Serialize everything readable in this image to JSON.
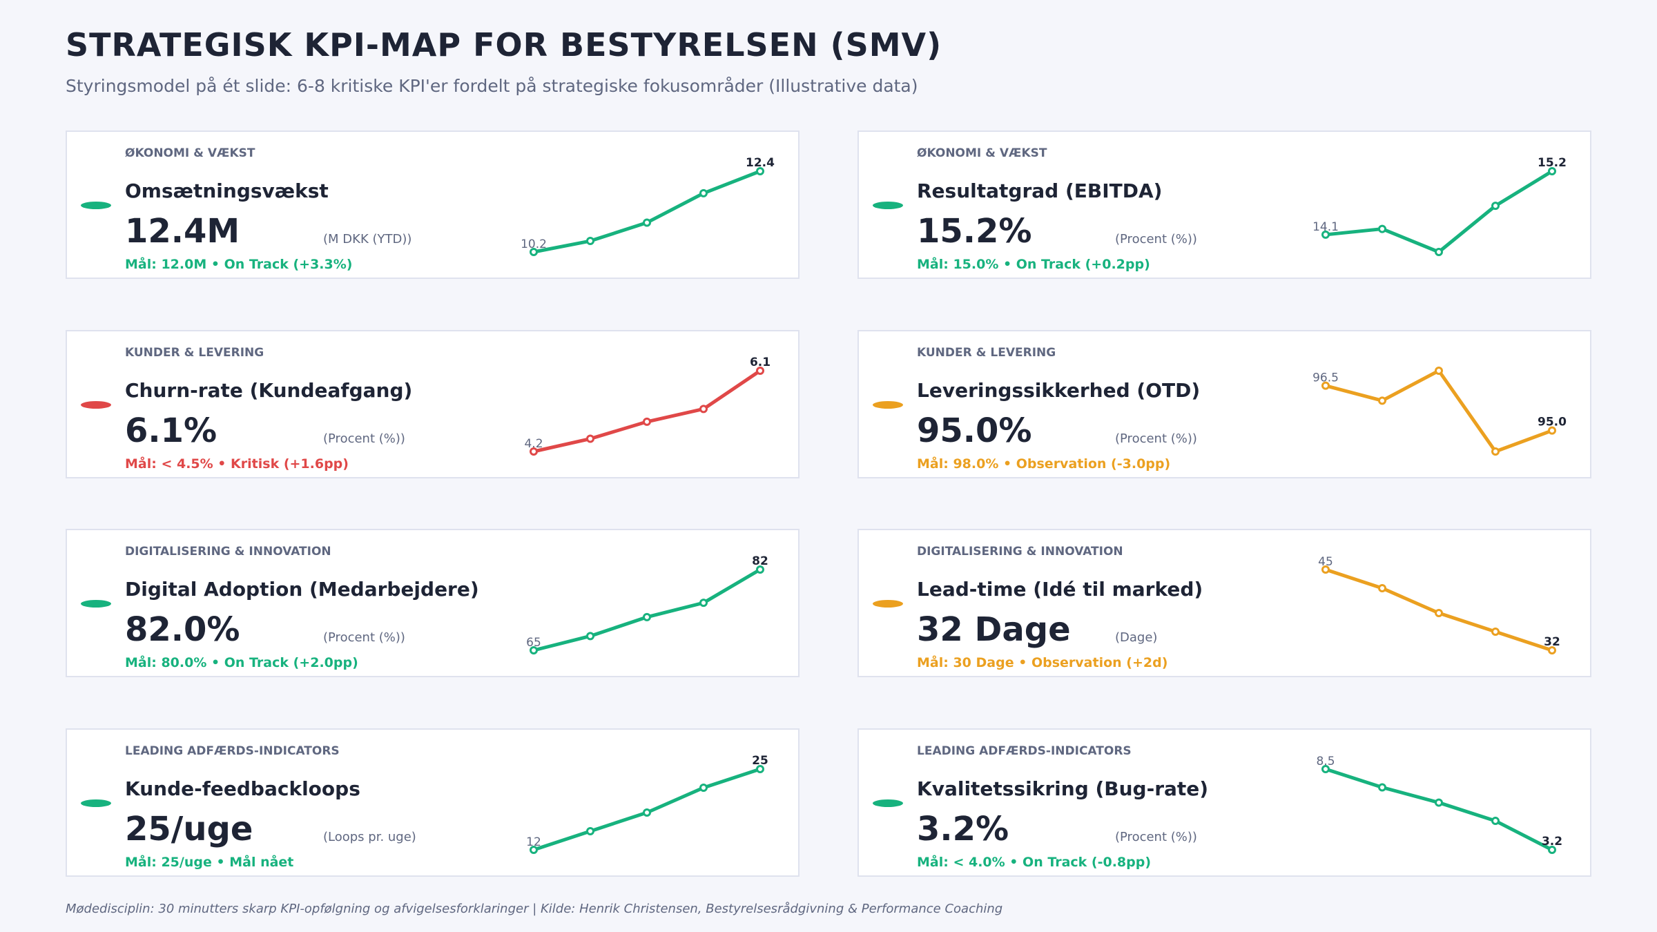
{
  "title": "STRATEGISK KPI-MAP FOR BESTYRELSEN (SMV)",
  "subtitle": "Styringsmodel på ét slide: 6-8 kritiske KPI'er fordelt på strategiske fokusområder (Illustrative data)",
  "footer": "Mødedisciplin: 30 minutters skarp KPI-opfølgning og afvigelsesforklaringer  |  Kilde: Henrik Christensen, Bestyrelsesrådgivning & Performance Coaching",
  "colors": {
    "green": "#17b27e",
    "red": "#e04848",
    "orange": "#eba020"
  },
  "chart_data": [
    {
      "type": "line",
      "category": "ØKONOMI & VÆKST",
      "name": "Omsætningsvækst",
      "value_text": "12.4M",
      "unit": "(M DKK (YTD))",
      "status": "Mål: 12.0M  •  On Track (+3.3%)",
      "color": "#17b27e",
      "values": [
        10.2,
        10.5,
        11.0,
        11.8,
        12.4
      ],
      "start_label": "10.2",
      "end_label": "12.4"
    },
    {
      "type": "line",
      "category": "ØKONOMI & VÆKST",
      "name": "Resultatgrad (EBITDA)",
      "value_text": "15.2%",
      "unit": "(Procent (%))",
      "status": "Mål: 15.0%  •  On Track (+0.2pp)",
      "color": "#17b27e",
      "values": [
        14.1,
        14.2,
        13.8,
        14.6,
        15.2
      ],
      "start_label": "14.1",
      "end_label": "15.2"
    },
    {
      "type": "line",
      "category": "KUNDER & LEVERING",
      "name": "Churn-rate (Kundeafgang)",
      "value_text": "6.1%",
      "unit": "(Procent (%))",
      "status": "Mål: < 4.5%  •  Kritisk (+1.6pp)",
      "color": "#e04848",
      "values": [
        4.2,
        4.5,
        4.9,
        5.2,
        6.1
      ],
      "start_label": "4.2",
      "end_label": "6.1"
    },
    {
      "type": "line",
      "category": "KUNDER & LEVERING",
      "name": "Leveringssikkerhed (OTD)",
      "value_text": "95.0%",
      "unit": "(Procent (%))",
      "status": "Mål: 98.0%  •  Observation (-3.0pp)",
      "color": "#eba020",
      "values": [
        96.5,
        96.0,
        97.0,
        94.3,
        95.0
      ],
      "start_label": "96.5",
      "end_label": "95.0"
    },
    {
      "type": "line",
      "category": "DIGITALISERING & INNOVATION",
      "name": "Digital Adoption (Medarbejdere)",
      "value_text": "82.0%",
      "unit": "(Procent (%))",
      "status": "Mål: 80.0%  •  On Track (+2.0pp)",
      "color": "#17b27e",
      "values": [
        65,
        68,
        72,
        75,
        82
      ],
      "start_label": "65",
      "end_label": "82"
    },
    {
      "type": "line",
      "category": "DIGITALISERING & INNOVATION",
      "name": "Lead-time (Idé til marked)",
      "value_text": "32 Dage",
      "unit": "(Dage)",
      "status": "Mål: 30 Dage  •  Observation (+2d)",
      "color": "#eba020",
      "values": [
        45,
        42,
        38,
        35,
        32
      ],
      "start_label": "45",
      "end_label": "32"
    },
    {
      "type": "line",
      "category": "LEADING ADFÆRDS-INDICATORS",
      "name": "Kunde-feedbackloops",
      "value_text": "25/uge",
      "unit": "(Loops pr. uge)",
      "status": "Mål: 25/uge  •  Mål nået",
      "color": "#17b27e",
      "values": [
        12,
        15,
        18,
        22,
        25
      ],
      "start_label": "12",
      "end_label": "25"
    },
    {
      "type": "line",
      "category": "LEADING ADFÆRDS-INDICATORS",
      "name": "Kvalitetssikring (Bug-rate)",
      "value_text": "3.2%",
      "unit": "(Procent (%))",
      "status": "Mål: < 4.0%  •  On Track (-0.8pp)",
      "color": "#17b27e",
      "values": [
        8.5,
        7.3,
        6.3,
        5.1,
        3.2
      ],
      "start_label": "8.5",
      "end_label": "3.2"
    }
  ]
}
